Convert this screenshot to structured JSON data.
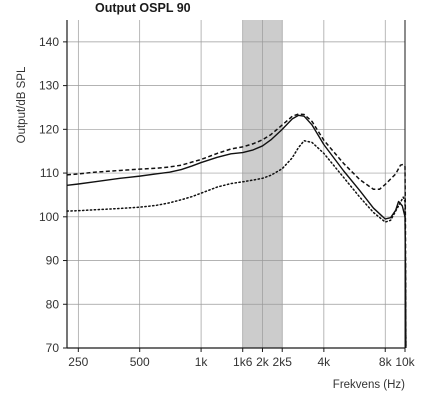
{
  "chart_data": {
    "type": "line",
    "title": "Output OSPL 90",
    "xlabel": "Frekvens (Hz)",
    "ylabel": "Output/dB SPL",
    "x_scale": "log",
    "xlim": [
      220,
      10000
    ],
    "ylim": [
      70,
      145
    ],
    "x_ticks": [
      250,
      500,
      1000,
      1600,
      2000,
      2500,
      4000,
      8000,
      10000
    ],
    "x_tick_labels": [
      "250",
      "500",
      "1k",
      "1k6",
      "2k",
      "2k5",
      "4k",
      "8k",
      "10k"
    ],
    "y_ticks": [
      70,
      80,
      90,
      100,
      110,
      120,
      130,
      140
    ],
    "y_tick_labels": [
      "70",
      "80",
      "90",
      "100",
      "110",
      "120",
      "130",
      "140"
    ],
    "grid": true,
    "highlight_band": {
      "from": 1600,
      "to": 2500,
      "color": "#cccccc"
    },
    "series": [
      {
        "style": "solid",
        "points": [
          [
            220,
            107.2
          ],
          [
            250,
            107.5
          ],
          [
            300,
            108
          ],
          [
            400,
            108.8
          ],
          [
            500,
            109.3
          ],
          [
            600,
            109.8
          ],
          [
            700,
            110.2
          ],
          [
            800,
            110.8
          ],
          [
            900,
            111.6
          ],
          [
            1000,
            112.4
          ],
          [
            1200,
            113.6
          ],
          [
            1400,
            114.4
          ],
          [
            1600,
            114.7
          ],
          [
            1800,
            115.3
          ],
          [
            2000,
            116.2
          ],
          [
            2200,
            117.6
          ],
          [
            2500,
            120
          ],
          [
            2800,
            122.4
          ],
          [
            3000,
            123.2
          ],
          [
            3200,
            123
          ],
          [
            3500,
            121
          ],
          [
            4000,
            116.5
          ],
          [
            5000,
            110.5
          ],
          [
            6000,
            106
          ],
          [
            7000,
            102
          ],
          [
            8000,
            99.5
          ],
          [
            8500,
            99.8
          ],
          [
            9000,
            101.5
          ],
          [
            9300,
            103.5
          ],
          [
            9700,
            102.5
          ],
          [
            10000,
            100
          ],
          [
            10050,
            88
          ],
          [
            10100,
            70
          ]
        ]
      },
      {
        "style": "dashed",
        "points": [
          [
            220,
            109.6
          ],
          [
            250,
            109.8
          ],
          [
            300,
            110.2
          ],
          [
            400,
            110.6
          ],
          [
            500,
            110.9
          ],
          [
            600,
            111.1
          ],
          [
            700,
            111.4
          ],
          [
            800,
            111.8
          ],
          [
            900,
            112.5
          ],
          [
            1000,
            113.1
          ],
          [
            1200,
            114.5
          ],
          [
            1400,
            115.5
          ],
          [
            1600,
            116
          ],
          [
            1800,
            116.7
          ],
          [
            2000,
            117.6
          ],
          [
            2200,
            118.8
          ],
          [
            2500,
            121
          ],
          [
            2800,
            123
          ],
          [
            3000,
            123.5
          ],
          [
            3200,
            123.4
          ],
          [
            3500,
            121.8
          ],
          [
            4000,
            117.5
          ],
          [
            5000,
            112.2
          ],
          [
            6000,
            108.5
          ],
          [
            7000,
            106.3
          ],
          [
            7500,
            106.3
          ],
          [
            8000,
            107.4
          ],
          [
            9000,
            109.8
          ],
          [
            9500,
            111.8
          ],
          [
            9800,
            112
          ],
          [
            10000,
            111.5
          ],
          [
            10050,
            98
          ],
          [
            10100,
            70
          ]
        ]
      },
      {
        "style": "dotted",
        "points": [
          [
            220,
            101.3
          ],
          [
            250,
            101.4
          ],
          [
            300,
            101.6
          ],
          [
            400,
            101.9
          ],
          [
            500,
            102.2
          ],
          [
            600,
            102.6
          ],
          [
            700,
            103.2
          ],
          [
            800,
            103.9
          ],
          [
            900,
            104.6
          ],
          [
            1000,
            105.4
          ],
          [
            1200,
            106.8
          ],
          [
            1400,
            107.6
          ],
          [
            1600,
            108
          ],
          [
            1800,
            108.4
          ],
          [
            2000,
            108.8
          ],
          [
            2200,
            109.5
          ],
          [
            2500,
            111
          ],
          [
            2800,
            113.5
          ],
          [
            3000,
            115.8
          ],
          [
            3200,
            117.4
          ],
          [
            3500,
            117
          ],
          [
            4000,
            114.5
          ],
          [
            5000,
            109
          ],
          [
            6000,
            104.5
          ],
          [
            7000,
            101
          ],
          [
            8000,
            98.8
          ],
          [
            8500,
            99.2
          ],
          [
            9000,
            101.3
          ],
          [
            9500,
            103.3
          ],
          [
            9800,
            104.5
          ],
          [
            10000,
            103.5
          ],
          [
            10050,
            90
          ],
          [
            10100,
            70
          ]
        ]
      }
    ]
  }
}
